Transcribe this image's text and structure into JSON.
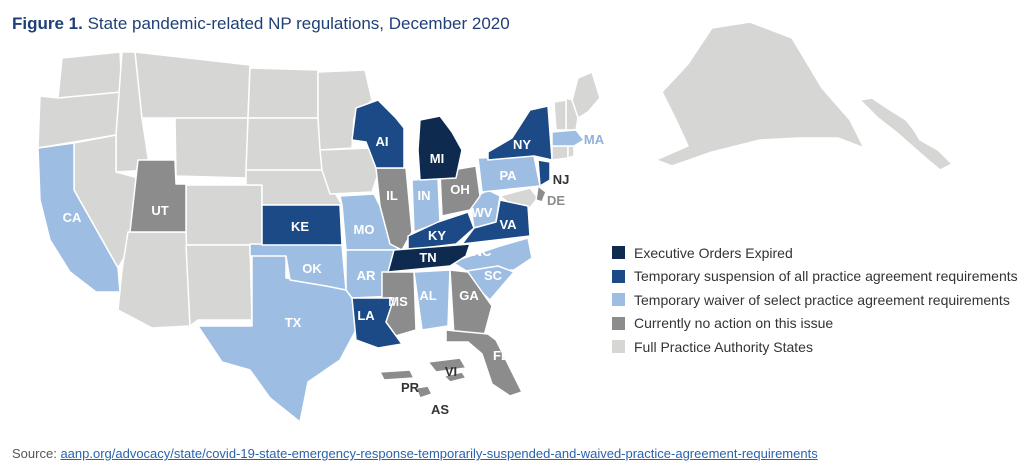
{
  "header": {
    "figure_label": "Figure 1.",
    "title": "State pandemic-related NP regulations, December 2020"
  },
  "colors": {
    "expired": "#0e2a4f",
    "suspension": "#1b4a86",
    "waiver": "#9dbde3",
    "no_action": "#8c8c8c",
    "full_practice": "#d6d6d4",
    "label_light": "#ffffff",
    "label_dark": "#333333",
    "label_blue_outside": "#8fb1dc",
    "border": "#ffffff"
  },
  "legend": {
    "items": [
      {
        "key": "expired",
        "label": "Executive Orders Expired"
      },
      {
        "key": "suspension",
        "label": "Temporary suspension of all practice agreement requirements"
      },
      {
        "key": "waiver",
        "label": "Temporary waiver of select practice agreement requirements"
      },
      {
        "key": "no_action",
        "label": "Currently no action on this issue"
      },
      {
        "key": "full_practice",
        "label": "Full Practice Authority States"
      }
    ]
  },
  "map": {
    "labels": {
      "CA": "CA",
      "UT": "UT",
      "KE": "KE",
      "TX": "TX",
      "OK": "OK",
      "AR": "AR",
      "MO": "MO",
      "LA": "LA",
      "MS": "MS",
      "AL": "AL",
      "GA": "GA",
      "FL": "FL",
      "TN": "TN",
      "KY": "KY",
      "IL": "IL",
      "IN": "IN",
      "OH": "OH",
      "WV": "WV",
      "VA": "VA",
      "NC": "NC",
      "SC": "SC",
      "PA": "PA",
      "NY": "NY",
      "NJ": "NJ",
      "DE": "DE",
      "MA": "MA",
      "MI": "MI",
      "AI": "AI",
      "PR": "PR",
      "VI": "VI",
      "AS": "AS"
    }
  },
  "footer": {
    "source_label": "Source:",
    "source_link": "aanp.org/advocacy/state/covid-19-state-emergency-response-temporarily-suspended-and-waived-practice-agreement-requirements"
  }
}
